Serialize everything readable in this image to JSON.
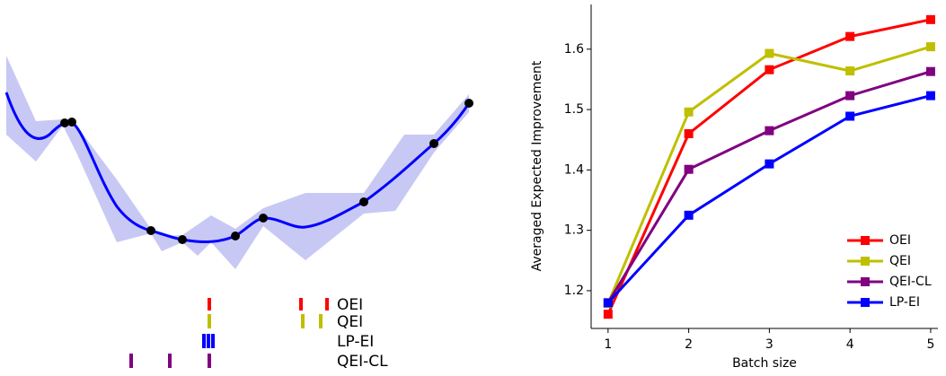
{
  "illustration": {
    "labels": [
      "OEI",
      "QEI",
      "LP-EI",
      "QEI-CL"
    ]
  },
  "chart_data": {
    "type": "line",
    "xlabel": "Batch size",
    "ylabel": "Averaged Expected Improvement",
    "x": [
      1,
      2,
      3,
      4,
      5
    ],
    "series": [
      {
        "name": "OEI",
        "color": "#ff0000",
        "values": [
          1.161,
          1.46,
          1.566,
          1.621,
          1.649
        ]
      },
      {
        "name": "QEI",
        "color": "#bfbf00",
        "values": [
          1.179,
          1.496,
          1.593,
          1.564,
          1.604
        ]
      },
      {
        "name": "QEI-CL",
        "color": "#800080",
        "values": [
          1.18,
          1.401,
          1.465,
          1.523,
          1.563
        ]
      },
      {
        "name": "LP-EI",
        "color": "#0000ff",
        "values": [
          1.18,
          1.325,
          1.41,
          1.489,
          1.523
        ]
      }
    ],
    "xlim": [
      0.79,
      5.09
    ],
    "ylim": [
      1.1375,
      1.674
    ],
    "xticks": [
      1,
      2,
      3,
      4,
      5
    ],
    "yticks": [
      1.2,
      1.3,
      1.4,
      1.5,
      1.6
    ],
    "legend": "lower right"
  }
}
